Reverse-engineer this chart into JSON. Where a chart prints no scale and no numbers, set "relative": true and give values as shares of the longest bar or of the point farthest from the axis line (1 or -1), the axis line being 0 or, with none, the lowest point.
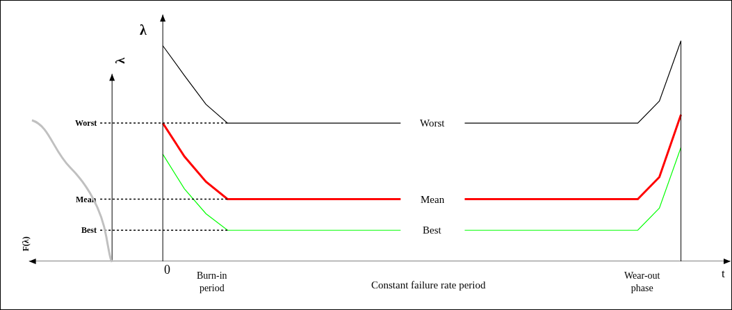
{
  "chart_data": {
    "type": "line",
    "relative": true,
    "categories": [
      null,
      null,
      null,
      null,
      null,
      null,
      null,
      null,
      null,
      null,
      null,
      null,
      null,
      null,
      null,
      null,
      null,
      null,
      null,
      null,
      null,
      null,
      null,
      null,
      null
    ],
    "xlabel": "t",
    "ylabel": "λ",
    "series": [
      {
        "name": "Worst",
        "color": "#000000",
        "values": [
          0.978,
          0.843,
          0.712,
          0.627,
          0.627,
          0.627,
          0.627,
          0.627,
          0.627,
          0.627,
          0.627,
          0.627,
          null,
          null,
          0.627,
          0.627,
          0.627,
          0.627,
          0.627,
          0.627,
          0.627,
          0.627,
          0.627,
          0.727,
          1.0
        ]
      },
      {
        "name": "Mean",
        "color": "#ff0000",
        "values": [
          0.627,
          0.476,
          0.361,
          0.282,
          0.282,
          0.282,
          0.282,
          0.282,
          0.282,
          0.282,
          0.282,
          0.282,
          null,
          null,
          0.282,
          0.282,
          0.282,
          0.282,
          0.282,
          0.282,
          0.282,
          0.282,
          0.282,
          0.382,
          0.665
        ]
      },
      {
        "name": "Best",
        "color": "#00ff00",
        "values": [
          0.486,
          0.329,
          0.216,
          0.141,
          0.141,
          0.141,
          0.141,
          0.141,
          0.141,
          0.141,
          0.141,
          0.141,
          null,
          null,
          0.141,
          0.141,
          0.141,
          0.141,
          0.141,
          0.141,
          0.141,
          0.141,
          0.141,
          0.241,
          0.517
        ]
      }
    ],
    "ref_lines": [
      {
        "axis": "y",
        "value": 0.627,
        "label": "Worst",
        "color": "#000000",
        "line_style": "dotted"
      },
      {
        "axis": "y",
        "value": 0.282,
        "label": "Mean",
        "color": "#000000",
        "line_style": "dotted"
      },
      {
        "axis": "y",
        "value": 0.141,
        "label": "Best",
        "color": "#000000",
        "line_style": "dotted"
      }
    ],
    "annotations": [
      "Burn-in\nperiod",
      "Constant failure rate period",
      "Wear-out\nphase",
      "λ",
      "F(λ)",
      "0"
    ],
    "legend": false,
    "marker": "none",
    "line_style": "solid"
  }
}
